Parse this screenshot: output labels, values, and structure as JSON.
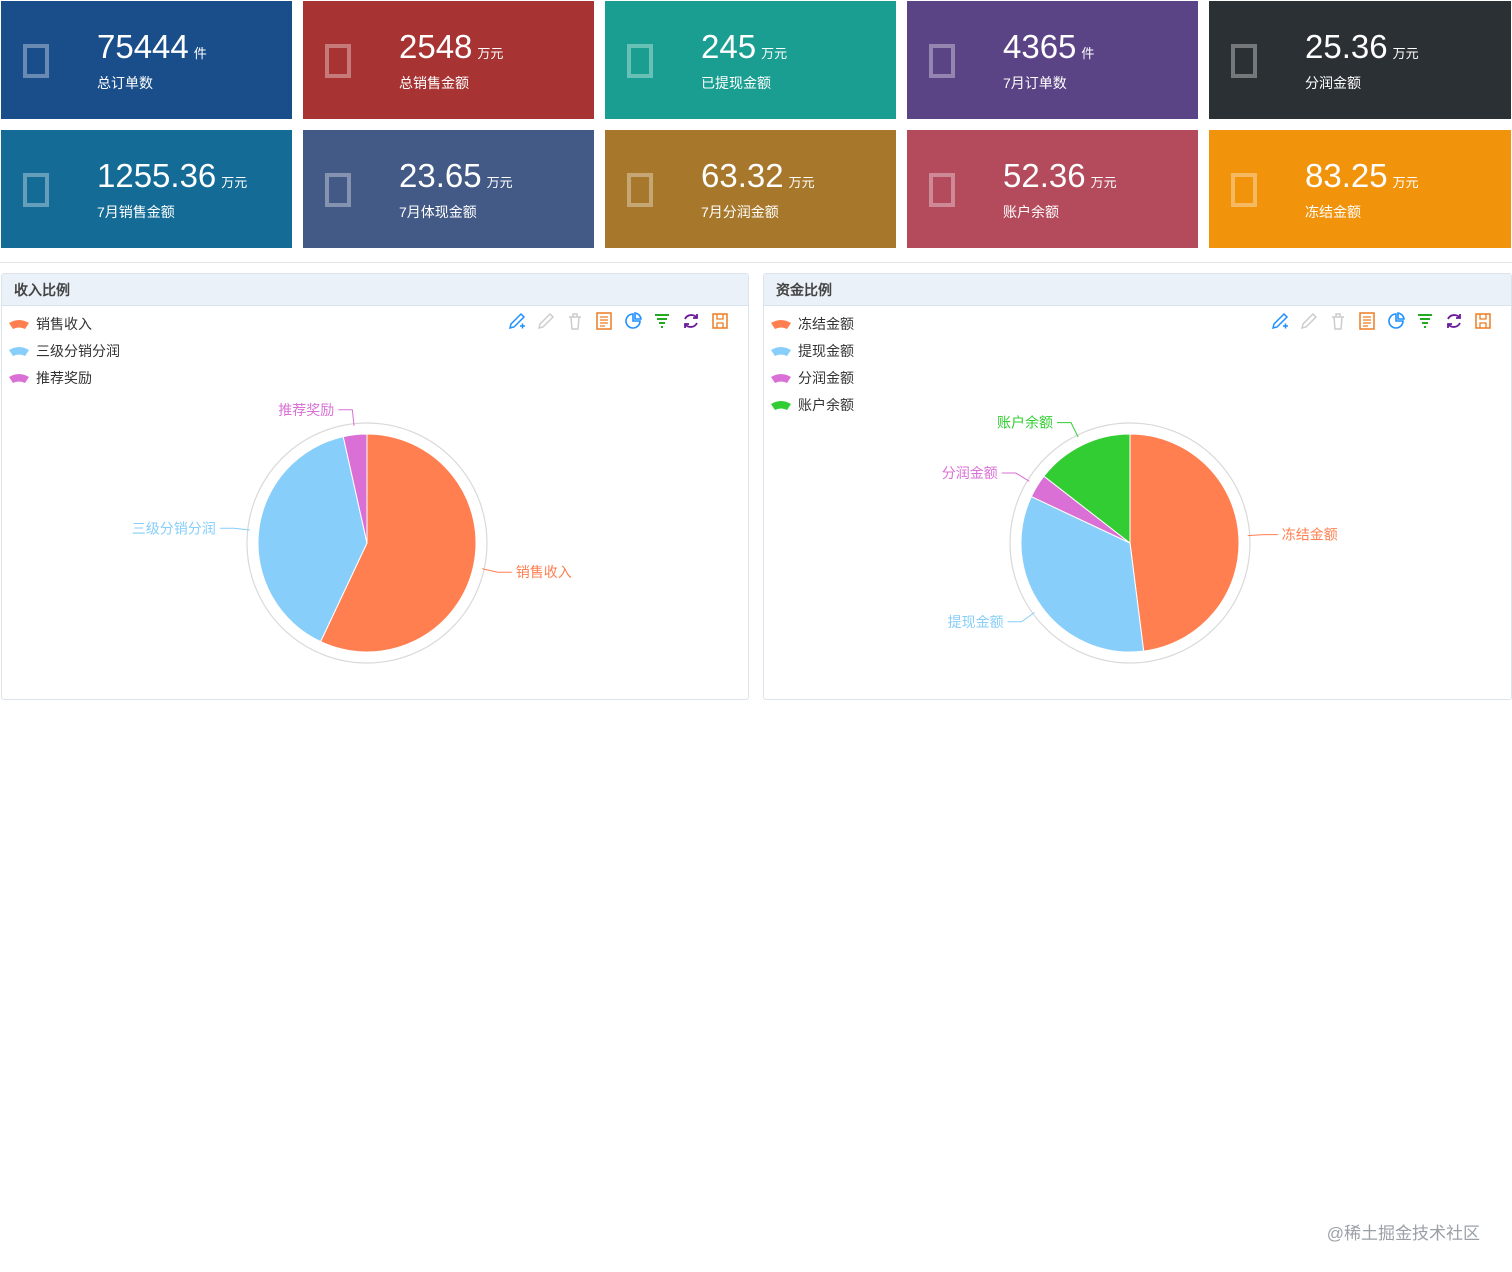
{
  "stats": [
    {
      "value": "75444",
      "unit": "件",
      "label": "总订单数",
      "color": "#1a4e8a"
    },
    {
      "value": "2548",
      "unit": "万元",
      "label": "总销售金额",
      "color": "#a83333"
    },
    {
      "value": "245",
      "unit": "万元",
      "label": "已提现金额",
      "color": "#1a9e91"
    },
    {
      "value": "4365",
      "unit": "件",
      "label": "7月订单数",
      "color": "#5b4486"
    },
    {
      "value": "25.36",
      "unit": "万元",
      "label": "分润金额",
      "color": "#2b3035"
    },
    {
      "value": "1255.36",
      "unit": "万元",
      "label": "7月销售金额",
      "color": "#136b96"
    },
    {
      "value": "23.65",
      "unit": "万元",
      "label": "7月体现金额",
      "color": "#445a86"
    },
    {
      "value": "63.32",
      "unit": "万元",
      "label": "7月分润金额",
      "color": "#a7782b"
    },
    {
      "value": "52.36",
      "unit": "万元",
      "label": "账户余额",
      "color": "#b34b5c"
    },
    {
      "value": "83.25",
      "unit": "万元",
      "label": "冻结金额",
      "color": "#f2930c"
    }
  ],
  "income_panel": {
    "title": "收入比例"
  },
  "funds_panel": {
    "title": "资金比例"
  },
  "watermark": "@稀土掘金技术社区",
  "chart_data": [
    {
      "type": "pie",
      "title": "收入比例",
      "categories": [
        "销售收入",
        "三级分销分润",
        "推荐奖励"
      ],
      "values": [
        57,
        39.5,
        3.5
      ],
      "colors": [
        "#ff7f50",
        "#87cefa",
        "#da70d6"
      ],
      "legend_position": "top-left"
    },
    {
      "type": "pie",
      "title": "资金比例",
      "categories": [
        "冻结金额",
        "提现金额",
        "分润金额",
        "账户余额"
      ],
      "values": [
        48,
        34,
        3.5,
        14.5
      ],
      "colors": [
        "#ff7f50",
        "#87cefa",
        "#da70d6",
        "#32cd32"
      ],
      "legend_position": "top-left"
    }
  ]
}
